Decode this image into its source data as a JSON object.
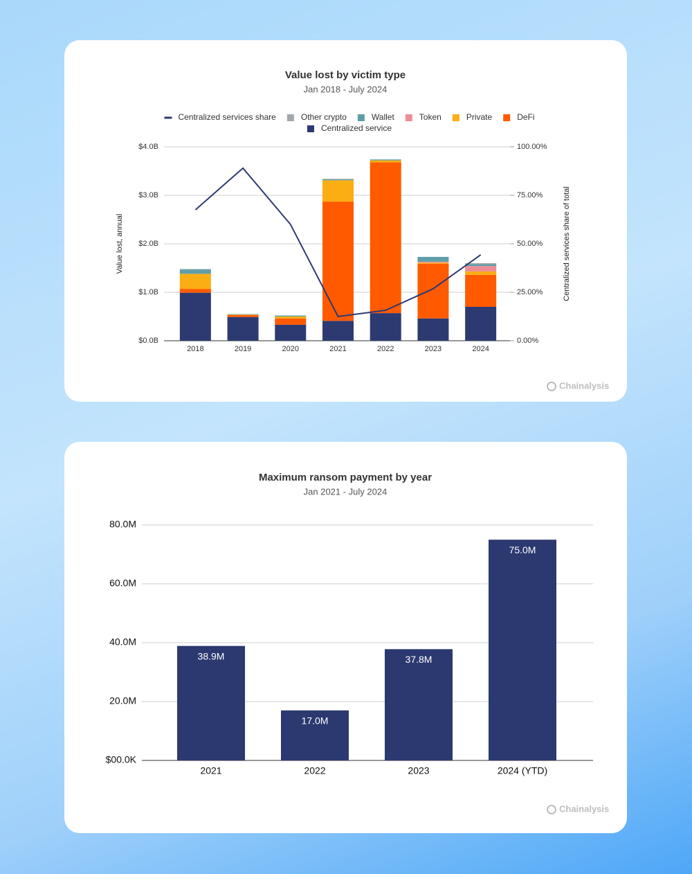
{
  "chart_data": [
    {
      "type": "bar",
      "stacked": true,
      "title": "Value lost by victim type",
      "subtitle": "Jan 2018 - July 2024",
      "ylabel": "Value lost, annual",
      "y2label": "Centralized services share of total",
      "categories": [
        "2018",
        "2019",
        "2020",
        "2021",
        "2022",
        "2023",
        "2024"
      ],
      "series": [
        {
          "name": "Centralized services share",
          "type": "line",
          "axis": "y2",
          "color": "#2d3a72",
          "values": [
            67.5,
            89,
            60,
            12.5,
            15.7,
            26.8,
            44.3
          ]
        },
        {
          "name": "Other crypto",
          "color": "#a3a6ac",
          "values": [
            0.01,
            0,
            0,
            0.01,
            0,
            0,
            0.02
          ]
        },
        {
          "name": "Wallet",
          "color": "#5f9ea8",
          "values": [
            0.09,
            0.01,
            0.02,
            0.02,
            0.02,
            0.1,
            0.04
          ]
        },
        {
          "name": "Token",
          "color": "#ee8c96",
          "values": [
            0,
            0,
            0,
            0,
            0,
            0.02,
            0.11
          ]
        },
        {
          "name": "Private",
          "color": "#fbad14",
          "values": [
            0.31,
            0.01,
            0.04,
            0.44,
            0.04,
            0.02,
            0.07
          ]
        },
        {
          "name": "DeFi",
          "color": "#ff5a00",
          "values": [
            0.08,
            0.04,
            0.13,
            2.46,
            3.11,
            1.13,
            0.66
          ]
        },
        {
          "name": "Centralized service",
          "color": "#2d3a72",
          "values": [
            0.99,
            0.49,
            0.33,
            0.41,
            0.57,
            0.46,
            0.7
          ]
        }
      ],
      "ylim": [
        0,
        4
      ],
      "yticks": [
        {
          "value": 0,
          "label": "$0.0B"
        },
        {
          "value": 1,
          "label": "$1.0B"
        },
        {
          "value": 2,
          "label": "$2.0B"
        },
        {
          "value": 3,
          "label": "$3.0B"
        },
        {
          "value": 4,
          "label": "$4.0B"
        }
      ],
      "y2lim": [
        0,
        100
      ],
      "y2ticks": [
        {
          "value": 0,
          "label": "0.00%"
        },
        {
          "value": 25,
          "label": "25.00%"
        },
        {
          "value": 50,
          "label": "50.00%"
        },
        {
          "value": 75,
          "label": "75.00%"
        },
        {
          "value": 100,
          "label": "100.00%"
        }
      ],
      "grid": true,
      "legend": "top",
      "source": "Chainalysis"
    },
    {
      "type": "bar",
      "title": "Maximum ransom payment by year",
      "subtitle": "Jan 2021 - July 2024",
      "categories": [
        "2021",
        "2022",
        "2023",
        "2024 (YTD)"
      ],
      "values": [
        38.9,
        17.0,
        37.8,
        75.0
      ],
      "value_labels": [
        "38.9M",
        "17.0M",
        "37.8M",
        "75.0M"
      ],
      "color": "#2b3970",
      "ylim": [
        0,
        80
      ],
      "yticks": [
        {
          "value": 0,
          "label": "$00.0K"
        },
        {
          "value": 20,
          "label": "20.0M"
        },
        {
          "value": 40,
          "label": "40.0M"
        },
        {
          "value": 60,
          "label": "60.0M"
        },
        {
          "value": 80,
          "label": "80.0M"
        }
      ],
      "grid": true,
      "source": "Chainalysis"
    }
  ]
}
